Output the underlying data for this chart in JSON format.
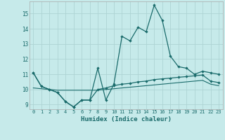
{
  "xlabel": "Humidex (Indice chaleur)",
  "bg_color": "#c6eaea",
  "grid_color": "#aed4d4",
  "line_color": "#1a6b6b",
  "spine_color": "#aaaaaa",
  "xlim": [
    -0.5,
    23.5
  ],
  "ylim": [
    8.7,
    15.8
  ],
  "xticks": [
    0,
    1,
    2,
    3,
    4,
    5,
    6,
    7,
    8,
    9,
    10,
    11,
    12,
    13,
    14,
    15,
    16,
    17,
    18,
    19,
    20,
    21,
    22,
    23
  ],
  "yticks": [
    9,
    10,
    11,
    12,
    13,
    14,
    15
  ],
  "humidex_main": [
    11.1,
    10.2,
    10.0,
    9.8,
    9.2,
    8.85,
    9.3,
    9.3,
    11.4,
    9.3,
    10.35,
    13.5,
    13.2,
    14.1,
    13.8,
    15.55,
    14.55,
    12.2,
    11.5,
    11.4,
    11.0,
    11.2,
    11.1,
    11.0
  ],
  "humidex_low": [
    11.1,
    10.2,
    10.0,
    9.8,
    9.2,
    8.85,
    9.3,
    9.3,
    10.0,
    10.1,
    10.25,
    10.35,
    10.4,
    10.5,
    10.55,
    10.65,
    10.7,
    10.75,
    10.8,
    10.85,
    10.9,
    10.95,
    10.55,
    10.45
  ],
  "humidex_avg": [
    10.1,
    10.05,
    10.0,
    9.95,
    9.95,
    9.95,
    9.95,
    9.95,
    9.95,
    10.0,
    10.05,
    10.1,
    10.15,
    10.2,
    10.25,
    10.3,
    10.35,
    10.4,
    10.45,
    10.5,
    10.55,
    10.6,
    10.35,
    10.25
  ]
}
